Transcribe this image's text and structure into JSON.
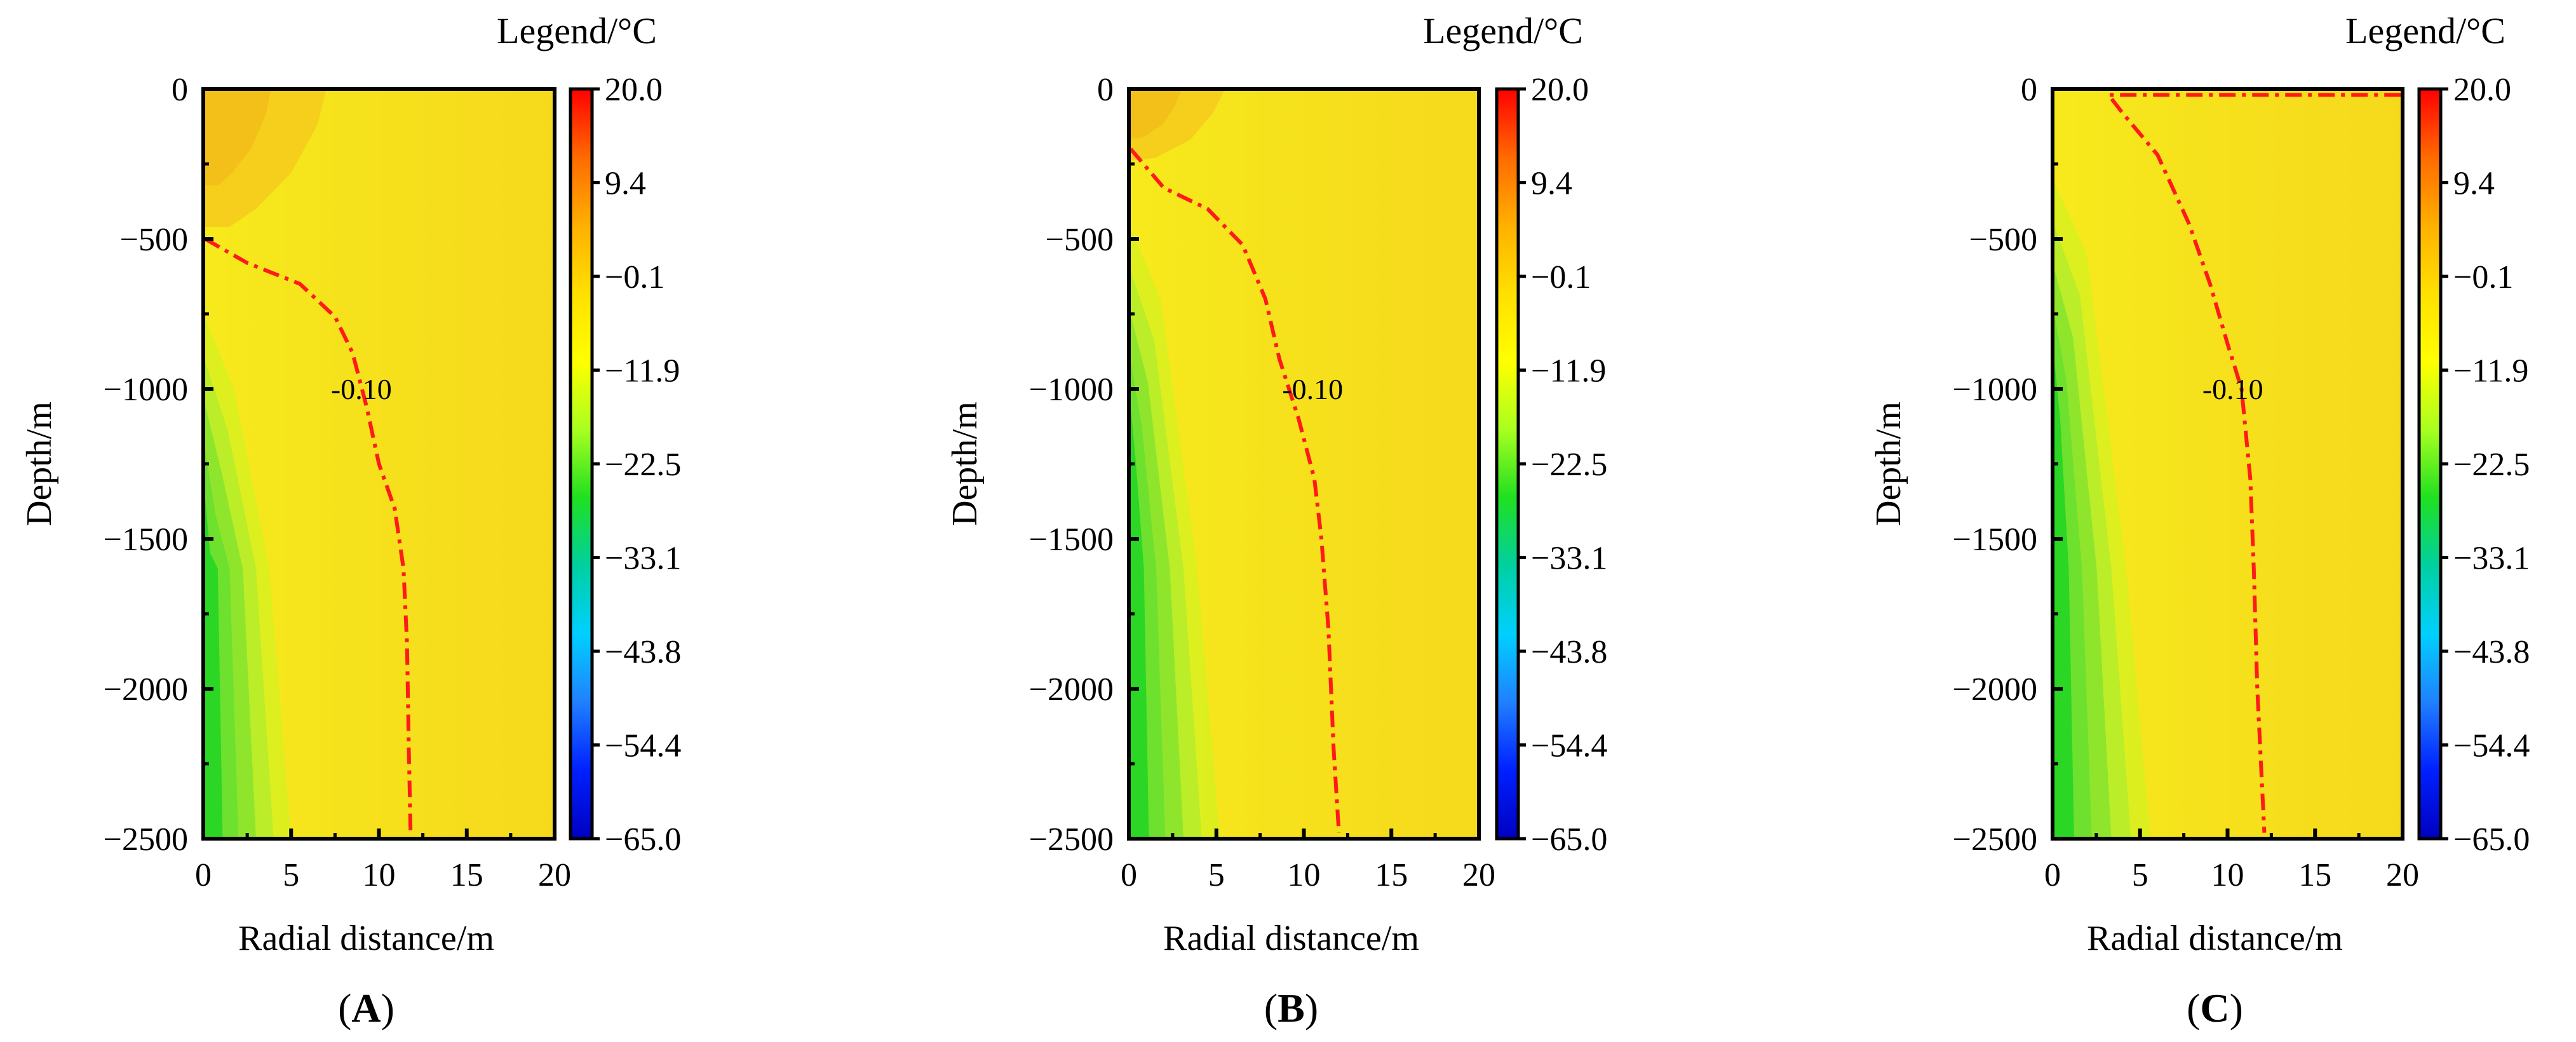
{
  "chart_data": [
    {
      "type": "heatmap",
      "panel": "A",
      "panel_label_prefix": "(",
      "panel_label_suffix": ")",
      "xlabel": "Radial distance/m",
      "ylabel": "Depth/m",
      "xlim": [
        0,
        20
      ],
      "ylim": [
        -2500,
        0
      ],
      "xticks": [
        "0",
        "5",
        "10",
        "15",
        "20"
      ],
      "yticks": [
        "0",
        "−500",
        "−1000",
        "−1500",
        "−2000",
        "−2500"
      ],
      "legend_title": "Legend/°C",
      "colorbar_ticks": [
        "20.0",
        "9.4",
        "−0.1",
        "−11.9",
        "−22.5",
        "−33.1",
        "−43.8",
        "−54.4",
        "−65.0"
      ],
      "colorbar_range": [
        -65.0,
        20.0
      ],
      "contour_label": "-0.10",
      "contour_value": -0.1,
      "contour_label_point": [
        9.0,
        -1000
      ],
      "contour": [
        [
          0.1,
          -500
        ],
        [
          2.5,
          -580
        ],
        [
          5.5,
          -650
        ],
        [
          7.5,
          -760
        ],
        [
          8.5,
          -880
        ],
        [
          9.3,
          -1060
        ],
        [
          10.0,
          -1250
        ],
        [
          10.9,
          -1400
        ],
        [
          11.4,
          -1600
        ],
        [
          11.6,
          -1850
        ],
        [
          11.7,
          -2200
        ],
        [
          11.8,
          -2480
        ]
      ],
      "warm_zone": [
        [
          0,
          0
        ],
        [
          7.0,
          0
        ],
        [
          6.5,
          -120
        ],
        [
          5.0,
          -280
        ],
        [
          3.0,
          -400
        ],
        [
          1.5,
          -460
        ],
        [
          0,
          -460
        ]
      ],
      "cold_zone_depth_start": -750,
      "cold_zone_width_bottom": 5.0
    },
    {
      "type": "heatmap",
      "panel": "B",
      "panel_label_prefix": "(",
      "panel_label_suffix": ")",
      "xlabel": "Radial distance/m",
      "ylabel": "Depth/m",
      "xlim": [
        0,
        20
      ],
      "ylim": [
        -2500,
        0
      ],
      "xticks": [
        "0",
        "5",
        "10",
        "15",
        "20"
      ],
      "yticks": [
        "0",
        "−500",
        "−1000",
        "−1500",
        "−2000",
        "−2500"
      ],
      "legend_title": "Legend/°C",
      "colorbar_ticks": [
        "20.0",
        "9.4",
        "−0.1",
        "−11.9",
        "−22.5",
        "−33.1",
        "−43.8",
        "−54.4",
        "−65.0"
      ],
      "colorbar_range": [
        -65.0,
        20.0
      ],
      "contour_label": "-0.10",
      "contour_value": -0.1,
      "contour_label_point": [
        10.5,
        -1000
      ],
      "contour": [
        [
          0.1,
          -200
        ],
        [
          2.0,
          -330
        ],
        [
          4.5,
          -400
        ],
        [
          6.5,
          -520
        ],
        [
          7.8,
          -700
        ],
        [
          8.6,
          -900
        ],
        [
          9.7,
          -1100
        ],
        [
          10.6,
          -1300
        ],
        [
          11.0,
          -1500
        ],
        [
          11.4,
          -1800
        ],
        [
          11.7,
          -2200
        ],
        [
          12.0,
          -2480
        ]
      ],
      "warm_zone": [
        [
          0,
          0
        ],
        [
          5.5,
          0
        ],
        [
          4.8,
          -80
        ],
        [
          3.5,
          -170
        ],
        [
          1.5,
          -230
        ],
        [
          0,
          -240
        ]
      ],
      "cold_zone_depth_start": -450,
      "cold_zone_width_bottom": 5.2
    },
    {
      "type": "heatmap",
      "panel": "C",
      "panel_label_prefix": "(",
      "panel_label_suffix": ")",
      "xlabel": "Radial distance/m",
      "ylabel": "Depth/m",
      "xlim": [
        0,
        20
      ],
      "ylim": [
        -2500,
        0
      ],
      "xticks": [
        "0",
        "5",
        "10",
        "15",
        "20"
      ],
      "yticks": [
        "0",
        "−500",
        "−1000",
        "−1500",
        "−2000",
        "−2500"
      ],
      "legend_title": "Legend/°C",
      "colorbar_ticks": [
        "20.0",
        "9.4",
        "−0.1",
        "−11.9",
        "−22.5",
        "−33.1",
        "−43.8",
        "−54.4",
        "−65.0"
      ],
      "colorbar_range": [
        -65.0,
        20.0
      ],
      "contour_label": "-0.10",
      "contour_value": -0.1,
      "contour_label_point": [
        10.3,
        -1000
      ],
      "contour": [
        [
          19.9,
          -20
        ],
        [
          3.2,
          -20
        ],
        [
          4.0,
          -80
        ],
        [
          6.0,
          -220
        ],
        [
          7.8,
          -450
        ],
        [
          9.0,
          -650
        ],
        [
          10.0,
          -850
        ],
        [
          10.8,
          -1000
        ],
        [
          11.3,
          -1300
        ],
        [
          11.5,
          -1600
        ],
        [
          11.7,
          -2000
        ],
        [
          12.1,
          -2480
        ]
      ],
      "warm_zone": [],
      "cold_zone_depth_start": -300,
      "cold_zone_width_bottom": 5.6
    }
  ],
  "colors": {
    "background_field": "#f5e51e",
    "near_warm_field": "#f6d91c",
    "warm": "#f3bc1a",
    "cold_light": "#b8ec2a",
    "cold_mid": "#6ee02e",
    "cold_deep": "#2bd625",
    "contour": "#ff1a1a",
    "colorbar_stops": [
      "#ff0000",
      "#ff6a00",
      "#ffb000",
      "#ffe000",
      "#ffff00",
      "#a8ff20",
      "#20e020",
      "#00d0a0",
      "#00d0ff",
      "#2080ff",
      "#0020ff",
      "#0000c0"
    ]
  }
}
